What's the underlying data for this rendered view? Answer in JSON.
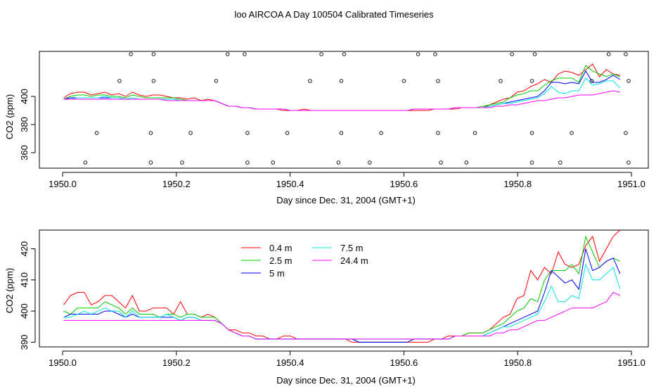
{
  "figure_title": "loo AIRCOA A  Day 100504  Calibrated Timeseries",
  "colors": {
    "axis": "#000000",
    "series": [
      "#ff0000",
      "#00cc00",
      "#0000ff",
      "#00e5e5",
      "#ff00ff"
    ]
  },
  "chart_data": [
    {
      "type": "line",
      "xlabel": "Day since Dec. 31, 2004 (GMT+1)",
      "ylabel": "CO2 (ppm)",
      "xlim": [
        1950.0,
        1951.0
      ],
      "ylim": [
        349,
        432
      ],
      "xticks": [
        "1950.0",
        "1950.2",
        "1950.4",
        "1950.6",
        "1950.8",
        "1951.0"
      ],
      "yticks": [
        "360",
        "380",
        "400"
      ],
      "legend": false,
      "marker_rows": {
        "top": [
          1950.12,
          1950.16,
          1950.29,
          1950.32,
          1950.455,
          1950.495,
          1950.625,
          1950.655,
          1950.79,
          1950.83,
          1950.96,
          1950.99
        ],
        "row2": [
          1950.1,
          1950.16,
          1950.27,
          1950.435,
          1950.49,
          1950.6,
          1950.66,
          1950.77,
          1950.825,
          1950.93,
          1950.995
        ],
        "row3": [
          1950.06,
          1950.155,
          1950.225,
          1950.325,
          1950.395,
          1950.49,
          1950.56,
          1950.66,
          1950.725,
          1950.825,
          1950.895,
          1950.99
        ],
        "bottom": [
          1950.04,
          1950.155,
          1950.21,
          1950.325,
          1950.37,
          1950.485,
          1950.54,
          1950.665,
          1950.71,
          1950.825,
          1950.875,
          1950.995
        ]
      },
      "marker_levels": {
        "top": 430,
        "row2": 411,
        "row3": 374,
        "bottom": 353
      },
      "series": [
        {
          "style": "0.4 m",
          "values": [
            399,
            402,
            403,
            403,
            401,
            402,
            403,
            401,
            402,
            400,
            403,
            401,
            400,
            401,
            401,
            400,
            399,
            399,
            398,
            399,
            397,
            398,
            397,
            395,
            393,
            393,
            392,
            392,
            391,
            391,
            391,
            391,
            390,
            390,
            390,
            391,
            390,
            390,
            390,
            390,
            390,
            390,
            390,
            390,
            390,
            390,
            390,
            390,
            390,
            390,
            390,
            390,
            390,
            390,
            391,
            391,
            391,
            391,
            392,
            392,
            392,
            392,
            394,
            396,
            398,
            399,
            403,
            404,
            407,
            409,
            412,
            410,
            416,
            418,
            417,
            415,
            419,
            423,
            414,
            419,
            416,
            415
          ]
        },
        {
          "style": "2.5 m",
          "values": [
            398,
            400,
            401,
            401,
            400,
            401,
            401,
            400,
            400,
            399,
            401,
            400,
            399,
            399,
            399,
            399,
            399,
            398,
            397,
            397,
            397,
            397,
            397,
            395,
            393,
            393,
            392,
            392,
            391,
            391,
            391,
            391,
            391,
            390,
            390,
            390,
            390,
            390,
            390,
            390,
            390,
            390,
            390,
            390,
            390,
            390,
            390,
            390,
            390,
            390,
            390,
            391,
            391,
            391,
            391,
            391,
            391,
            392,
            392,
            392,
            392,
            393,
            394,
            395,
            396,
            399,
            401,
            402,
            404,
            404,
            408,
            411,
            413,
            413,
            413,
            410,
            422,
            418,
            416,
            414,
            416,
            414
          ]
        },
        {
          "style": "5 m",
          "values": [
            398,
            399,
            399,
            399,
            399,
            399,
            399,
            399,
            399,
            398,
            398,
            398,
            398,
            398,
            398,
            398,
            398,
            397,
            397,
            397,
            397,
            397,
            397,
            395,
            393,
            393,
            392,
            392,
            391,
            391,
            391,
            391,
            391,
            390,
            390,
            390,
            390,
            390,
            390,
            390,
            390,
            390,
            390,
            390,
            390,
            390,
            390,
            390,
            390,
            390,
            390,
            391,
            391,
            391,
            391,
            391,
            391,
            392,
            392,
            392,
            392,
            392,
            393,
            394,
            395,
            396,
            397,
            398,
            399,
            400,
            404,
            410,
            410,
            409,
            410,
            409,
            418,
            410,
            410,
            412,
            415,
            412
          ]
        },
        {
          "style": "7.5 m",
          "values": [
            398,
            398,
            399,
            399,
            399,
            399,
            400,
            399,
            399,
            398,
            399,
            398,
            398,
            398,
            398,
            398,
            398,
            397,
            397,
            397,
            397,
            397,
            397,
            395,
            393,
            393,
            392,
            392,
            391,
            391,
            391,
            391,
            391,
            390,
            390,
            390,
            390,
            390,
            390,
            390,
            390,
            390,
            390,
            390,
            390,
            390,
            390,
            390,
            390,
            390,
            390,
            391,
            391,
            391,
            391,
            391,
            391,
            392,
            392,
            392,
            392,
            392,
            393,
            394,
            395,
            395,
            396,
            397,
            398,
            399,
            402,
            407,
            403,
            402,
            404,
            404,
            413,
            408,
            409,
            411,
            411,
            406
          ]
        },
        {
          "style": "24.4 m",
          "values": [
            398,
            398,
            398,
            398,
            398,
            398,
            398,
            398,
            398,
            398,
            398,
            398,
            398,
            398,
            398,
            397,
            397,
            397,
            397,
            397,
            397,
            397,
            397,
            395,
            393,
            393,
            392,
            392,
            391,
            391,
            391,
            391,
            391,
            390,
            390,
            390,
            390,
            390,
            390,
            390,
            390,
            390,
            390,
            390,
            390,
            390,
            390,
            390,
            390,
            390,
            390,
            391,
            391,
            391,
            391,
            391,
            391,
            392,
            392,
            392,
            392,
            392,
            392,
            393,
            393,
            394,
            394,
            395,
            396,
            397,
            397,
            398,
            399,
            399,
            400,
            401,
            401,
            401,
            402,
            403,
            404,
            403
          ]
        }
      ]
    },
    {
      "type": "line",
      "xlabel": "Day since Dec. 31, 2004 (GMT+1)",
      "ylabel": "CO2 (ppm)",
      "xlim": [
        1950.0,
        1951.0
      ],
      "ylim": [
        388.5,
        426
      ],
      "xticks": [
        "1950.0",
        "1950.2",
        "1950.4",
        "1950.6",
        "1950.8",
        "1951.0"
      ],
      "yticks": [
        "390",
        "400",
        "410",
        "420"
      ],
      "legend": true,
      "legend_position": "top-center",
      "series": [
        {
          "name": "0.4 m",
          "values": [
            402,
            405,
            406,
            406,
            402,
            403,
            405,
            405,
            403,
            401,
            405,
            400,
            400,
            401,
            401,
            401,
            399,
            403,
            399,
            399,
            398,
            399,
            398,
            396,
            394,
            394,
            393,
            393,
            392,
            392,
            391,
            391,
            392,
            392,
            391,
            391,
            391,
            391,
            391,
            391,
            391,
            391,
            390,
            390,
            390,
            390,
            390,
            390,
            390,
            390,
            390,
            390,
            390,
            390,
            391,
            391,
            392,
            392,
            392,
            393,
            393,
            393,
            394,
            396,
            398,
            399,
            404,
            405,
            413,
            410,
            414,
            412,
            419,
            415,
            414,
            415,
            421,
            424,
            416,
            420,
            424,
            426
          ]
        },
        {
          "name": "2.5 m",
          "values": [
            400,
            399,
            401,
            401,
            401,
            401,
            403,
            402,
            401,
            399,
            401,
            399,
            399,
            399,
            398,
            399,
            399,
            398,
            399,
            399,
            398,
            398,
            398,
            396,
            394,
            393,
            392,
            392,
            391,
            391,
            391,
            391,
            391,
            391,
            391,
            391,
            391,
            391,
            391,
            391,
            391,
            391,
            391,
            390,
            390,
            390,
            390,
            390,
            390,
            390,
            390,
            391,
            391,
            391,
            391,
            391,
            391,
            392,
            392,
            393,
            393,
            393,
            394,
            395,
            396,
            398,
            400,
            401,
            404,
            403,
            410,
            413,
            413,
            413,
            415,
            412,
            424,
            419,
            414,
            416,
            417,
            416
          ]
        },
        {
          "name": "5 m",
          "values": [
            398,
            399,
            399,
            399,
            399,
            399,
            400,
            400,
            399,
            398,
            399,
            398,
            398,
            398,
            398,
            398,
            398,
            397,
            398,
            398,
            397,
            397,
            397,
            396,
            394,
            393,
            392,
            392,
            391,
            391,
            391,
            391,
            391,
            391,
            391,
            391,
            391,
            391,
            391,
            391,
            391,
            391,
            391,
            390,
            390,
            390,
            390,
            390,
            390,
            390,
            390,
            391,
            391,
            391,
            391,
            391,
            391,
            392,
            392,
            392,
            392,
            392,
            393,
            394,
            395,
            396,
            397,
            398,
            399,
            400,
            406,
            413,
            411,
            409,
            410,
            407,
            420,
            413,
            414,
            416,
            417,
            412
          ]
        },
        {
          "name": "7.5 m",
          "values": [
            398,
            398,
            399,
            400,
            399,
            400,
            401,
            400,
            400,
            398,
            400,
            398,
            398,
            398,
            398,
            399,
            398,
            397,
            398,
            398,
            397,
            397,
            397,
            396,
            394,
            393,
            392,
            392,
            391,
            391,
            391,
            391,
            391,
            391,
            391,
            391,
            391,
            391,
            391,
            391,
            391,
            391,
            391,
            391,
            391,
            391,
            391,
            391,
            391,
            391,
            391,
            391,
            391,
            391,
            391,
            391,
            391,
            392,
            392,
            392,
            392,
            392,
            393,
            394,
            395,
            395,
            396,
            397,
            398,
            399,
            403,
            408,
            403,
            403,
            405,
            404,
            415,
            410,
            410,
            412,
            414,
            407
          ]
        },
        {
          "name": "24.4 m",
          "values": [
            397,
            397,
            397,
            397,
            397,
            397,
            397,
            397,
            397,
            397,
            397,
            397,
            397,
            397,
            397,
            397,
            397,
            397,
            397,
            397,
            397,
            397,
            397,
            396,
            394,
            393,
            392,
            392,
            391,
            391,
            391,
            391,
            391,
            391,
            391,
            391,
            391,
            391,
            391,
            391,
            391,
            391,
            391,
            391,
            391,
            391,
            391,
            391,
            391,
            391,
            391,
            391,
            391,
            391,
            391,
            391,
            391,
            392,
            392,
            392,
            392,
            392,
            392,
            393,
            393,
            394,
            394,
            395,
            396,
            397,
            397,
            398,
            399,
            400,
            401,
            401,
            401,
            401,
            402,
            403,
            406,
            405
          ]
        }
      ]
    }
  ]
}
